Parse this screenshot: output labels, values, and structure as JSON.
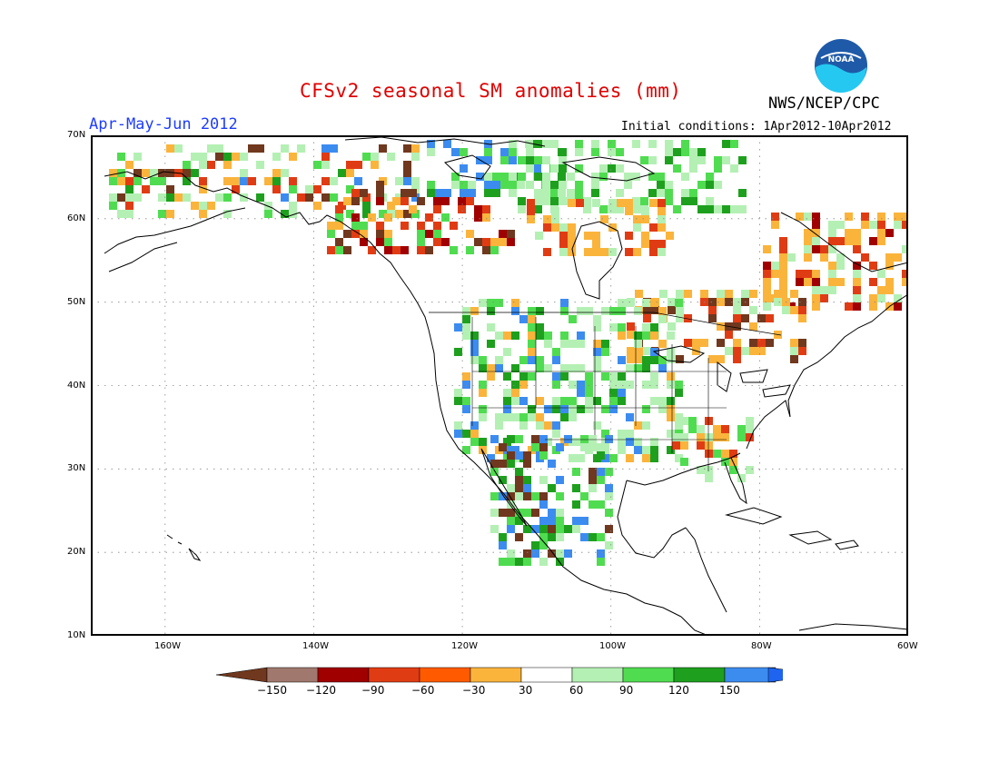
{
  "title": "CFSv2 seasonal SM anomalies (mm)",
  "period": "Apr-May-Jun 2012",
  "initial_conditions": "Initial conditions: 1Apr2012-10Apr2012",
  "organization": "NWS/NCEP/CPC",
  "logo_text": "NOAA",
  "map": {
    "lat_labels": [
      "70N",
      "60N",
      "50N",
      "40N",
      "30N",
      "20N",
      "10N"
    ],
    "lon_labels": [
      "160W",
      "140W",
      "120W",
      "100W",
      "80W",
      "60W"
    ],
    "extent": {
      "lon_min": -170,
      "lon_max": -60,
      "lat_min": 10,
      "lat_max": 70
    }
  },
  "legend": {
    "labels": [
      "-150",
      "-120",
      "-90",
      "-60",
      "-30",
      "30",
      "60",
      "90",
      "120",
      "150"
    ],
    "colors": [
      "#70381e",
      "#a0786e",
      "#a00000",
      "#e03c14",
      "#ff5a00",
      "#fab43c",
      "#ffffff",
      "#b4f0b4",
      "#50dc50",
      "#1ea01e",
      "#3c8cf0",
      "#1e64f0"
    ]
  },
  "colors": {
    "title": "#e00000",
    "period": "#1e3cff",
    "noaa_blue": "#1e5aa8",
    "noaa_cyan": "#25c8f0"
  }
}
